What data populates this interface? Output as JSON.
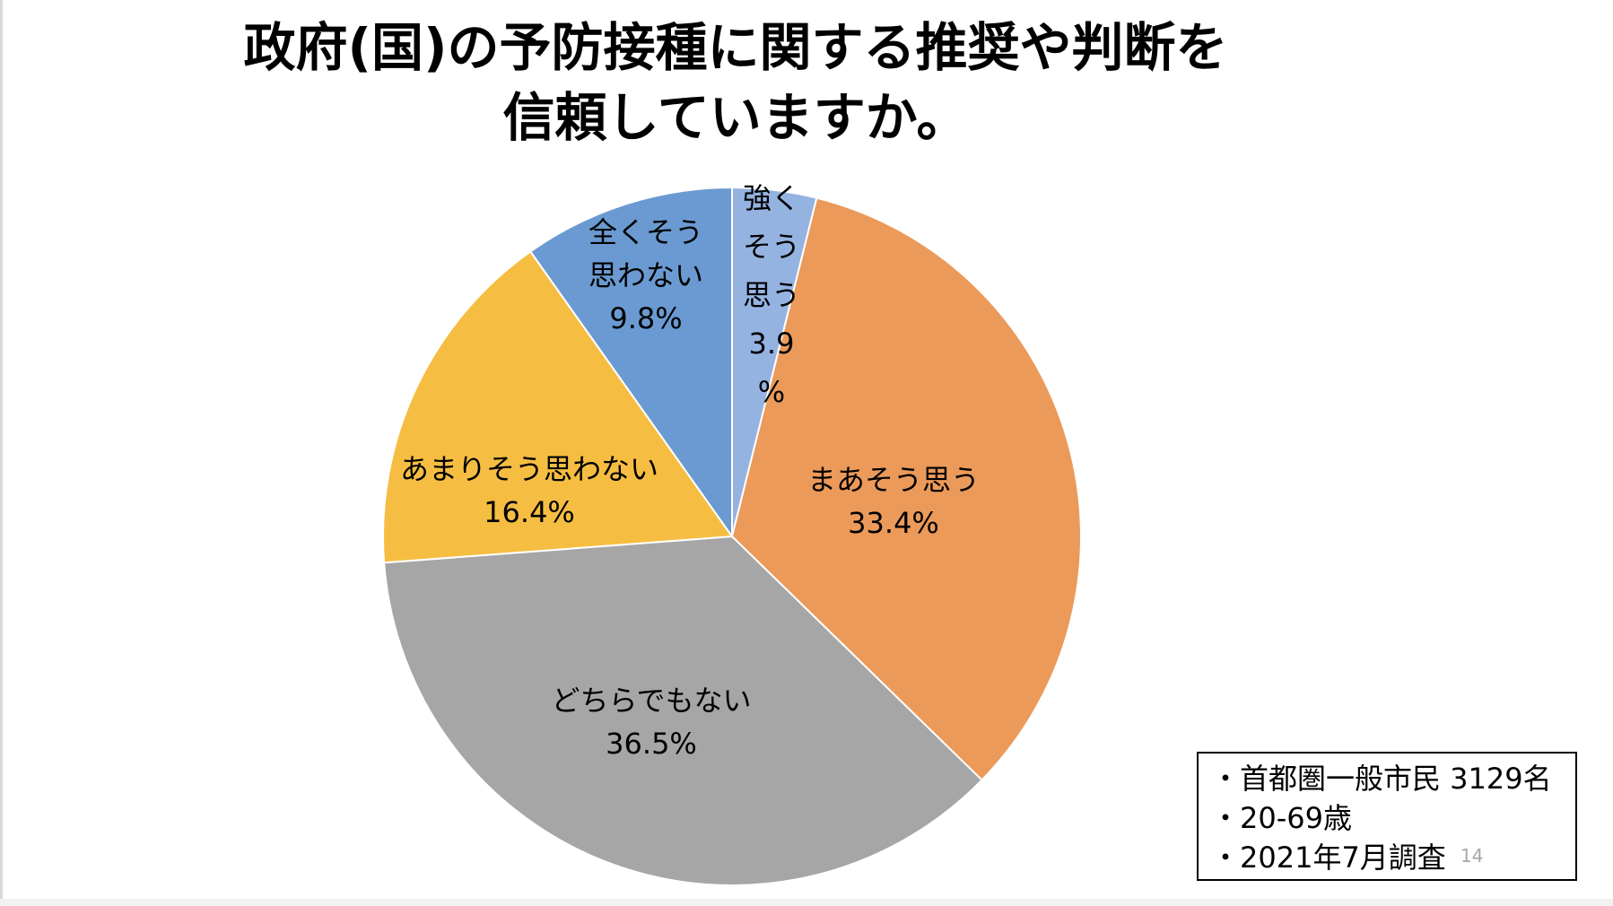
{
  "slide": {
    "title_line1": "政府(国)の予防接種に関する推奨や判断を",
    "title_line2": "信頼していますか。",
    "page_number": "14"
  },
  "notes": [
    "・首都圏一般市民 3129名",
    "・20-69歳",
    "・2021年7月調査"
  ],
  "chart_data": {
    "type": "pie",
    "title": "政府(国)の予防接種に関する推奨や判断を信頼していますか。",
    "start": "12 o'clock",
    "direction": "clockwise",
    "slices": [
      {
        "label": "強くそう思う",
        "value": 3.9,
        "value_label": "3.9%",
        "color": "#95b3e1",
        "label_lines": [
          "強く",
          "そう",
          "思う",
          "3.9",
          "%"
        ]
      },
      {
        "label": "まあそう思う",
        "value": 33.4,
        "value_label": "33.4%",
        "color": "#eb9a5a",
        "label_lines": [
          "まあそう思う",
          "33.4%"
        ]
      },
      {
        "label": "どちらでもない",
        "value": 36.5,
        "value_label": "36.5%",
        "color": "#a6a6a6",
        "label_lines": [
          "どちらでもない",
          "36.5%"
        ]
      },
      {
        "label": "あまりそう思わない",
        "value": 16.4,
        "value_label": "16.4%",
        "color": "#f5be42",
        "label_lines": [
          "あまりそう思わない",
          "16.4%"
        ]
      },
      {
        "label": "全くそう思わない",
        "value": 9.8,
        "value_label": "9.8%",
        "color": "#6a9ad1",
        "label_lines": [
          "全くそう",
          "思わない",
          "9.8%"
        ]
      }
    ]
  }
}
